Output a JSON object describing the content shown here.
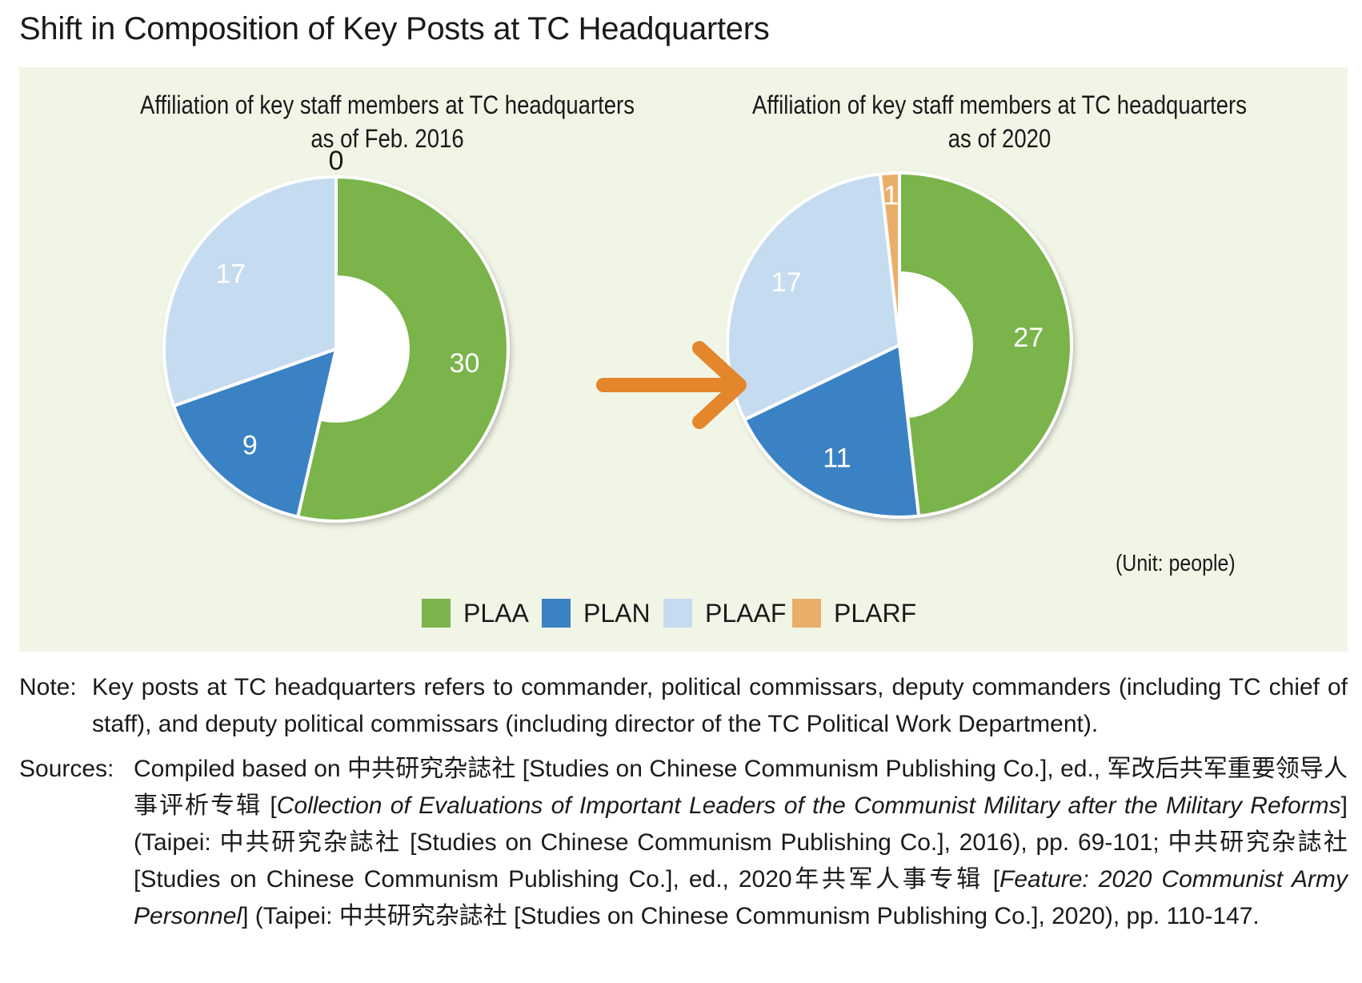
{
  "title": "Shift in Composition of Key Posts at TC Headquarters",
  "chart_data": [
    {
      "type": "donut",
      "title": "Affiliation of key staff members at TC headquarters as of Feb. 2016",
      "title_lines": [
        "Affiliation of key staff members at TC headquarters",
        "as of Feb. 2016"
      ],
      "categories": [
        "PLAA",
        "PLAN",
        "PLAAF",
        "PLARF"
      ],
      "values": [
        30,
        9,
        17,
        0
      ],
      "labels": [
        "30",
        "9",
        "17",
        "0"
      ]
    },
    {
      "type": "donut",
      "title": "Affiliation of key staff members at TC headquarters as of 2020",
      "title_lines": [
        "Affiliation of key staff members at TC headquarters",
        "as of 2020"
      ],
      "categories": [
        "PLAA",
        "PLAN",
        "PLAAF",
        "PLARF"
      ],
      "values": [
        27,
        11,
        17,
        1
      ],
      "labels": [
        "27",
        "11",
        "17",
        "1"
      ]
    }
  ],
  "colors": {
    "PLAA": "#7ab44a",
    "PLAN": "#3b82c4",
    "PLAAF": "#c5dbf0",
    "PLARF": "#eaae6a",
    "arrow": "#e3862c",
    "background": "#f1f5e6"
  },
  "legend": [
    {
      "label": "PLAA",
      "color": "#7ab44a"
    },
    {
      "label": "PLAN",
      "color": "#3b82c4"
    },
    {
      "label": "PLAAF",
      "color": "#c5dbf0"
    },
    {
      "label": "PLARF",
      "color": "#eaae6a"
    }
  ],
  "unit": "(Unit: people)",
  "note": {
    "head": "Note:",
    "text": "Key posts at TC headquarters refers to commander, political commissars, deputy commanders (including TC chief of staff), and deputy political commissars (including director of the TC Political Work Department)."
  },
  "sources": {
    "head": "Sources:",
    "parts": [
      "Compiled based on 中共研究杂誌社 [Studies on Chinese Communism Publishing Co.], ed., 军改后共军重要领导人事评析专辑 [",
      "Collection of Evaluations of Important Leaders of the Communist Military after the Military Reforms",
      "] (Taipei: 中共研究杂誌社 [Studies on Chinese Communism Publishing Co.], 2016), pp. 69-101; 中共研究杂誌社 [Studies on Chinese Communism Publishing Co.], ed., 2020年共军人事专辑 [",
      "Feature: 2020 Communist Army Personnel",
      "] (Taipei: 中共研究杂誌社 [Studies on Chinese Communism Publishing Co.], 2020), pp. 110-147."
    ]
  }
}
